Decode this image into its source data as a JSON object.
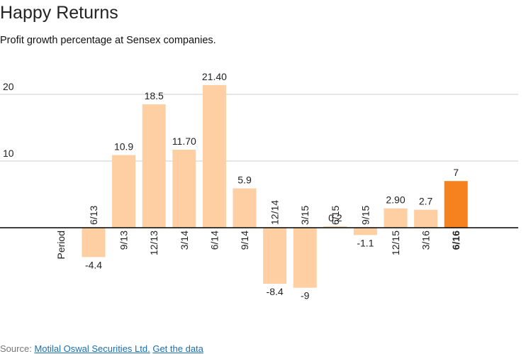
{
  "title": "Happy Returns",
  "subtitle": "Profit growth percentage at Sensex companies.",
  "source": {
    "prefix": "Source:",
    "link_text": "Motilal Oswal Securities Ltd.",
    "data_link_text": "Get the data"
  },
  "chart_data": {
    "type": "bar",
    "xlabel": "Period",
    "ylabel": "",
    "ylim": [
      -12,
      22
    ],
    "yticks": [
      "10",
      "20"
    ],
    "grid": true,
    "categories": [
      "6/13",
      "9/13",
      "12/13",
      "3/14",
      "6/14",
      "9/14",
      "12/14",
      "3/15",
      "6/15",
      "9/15",
      "12/15",
      "3/16",
      "6/16"
    ],
    "values": [
      -4.4,
      10.9,
      18.5,
      11.7,
      21.4,
      5.9,
      -8.4,
      -9,
      0.2,
      -1.1,
      2.9,
      2.7,
      7
    ],
    "value_labels": [
      "-4.4",
      "10.9",
      "18.5",
      "11.70",
      "21.40",
      "5.9",
      "-8.4",
      "-9",
      "0.2",
      "-1.1",
      "2.90",
      "2.7",
      "7"
    ],
    "highlight_index": 12,
    "colors": {
      "bar": "#fdcfa3",
      "highlight": "#f5821f",
      "axis": "#000000",
      "grid": "#cccccc"
    }
  }
}
